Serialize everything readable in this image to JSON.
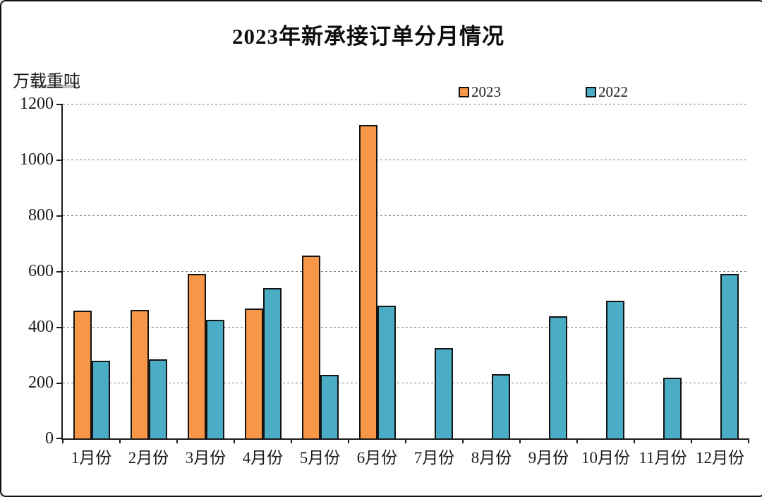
{
  "title": "2023年新承接订单分月情况",
  "unit_label": "万载重吨",
  "legend": [
    {
      "label": "2023",
      "color": "#F79646"
    },
    {
      "label": "2022",
      "color": "#4BACC6"
    }
  ],
  "colors": {
    "bar_2023": "#F79646",
    "bar_2022": "#4BACC6",
    "bar_border": "#141414",
    "axis": "#1a1a1a",
    "gridline": "#7d7d7d"
  },
  "chart_data": {
    "type": "bar",
    "title": "2023年新承接订单分月情况",
    "ylabel": "万载重吨",
    "categories": [
      "1月份",
      "2月份",
      "3月份",
      "4月份",
      "5月份",
      "6月份",
      "7月份",
      "8月份",
      "9月份",
      "10月份",
      "11月份",
      "12月份"
    ],
    "series": [
      {
        "name": "2023",
        "color": "#F79646",
        "values": [
          459,
          462,
          590,
          465,
          655,
          1125,
          null,
          null,
          null,
          null,
          null,
          null
        ]
      },
      {
        "name": "2022",
        "color": "#4BACC6",
        "values": [
          278,
          283,
          426,
          540,
          227,
          475,
          324,
          230,
          437,
          494,
          217,
          590
        ]
      }
    ],
    "ylim": [
      0,
      1200
    ],
    "ytick_step": 200,
    "yticks": [
      0,
      200,
      400,
      600,
      800,
      1000,
      1200
    ],
    "grid": "horizontal-dashed",
    "legend_position": "top-center"
  }
}
